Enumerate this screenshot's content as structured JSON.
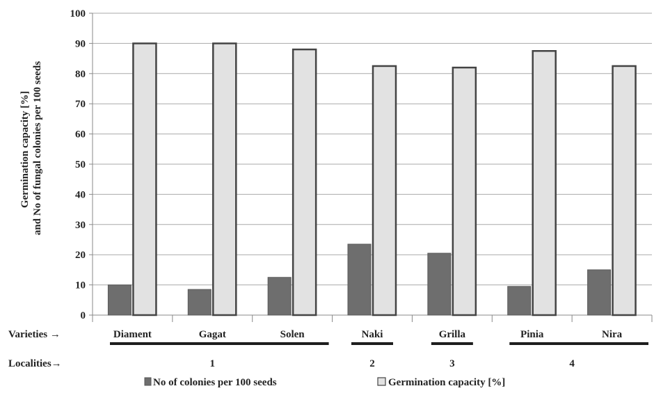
{
  "chart_data": {
    "type": "bar",
    "ylabel_line1": "Germination capacity [%]",
    "ylabel_line2": "and No of fungal colonies per 100 seeds",
    "ylim": [
      0,
      100
    ],
    "yticks": [
      0,
      10,
      20,
      30,
      40,
      50,
      60,
      70,
      80,
      90,
      100
    ],
    "grid": true,
    "categories": [
      "Diament",
      "Gagat",
      "Solen",
      "Naki",
      "Grilla",
      "Pinia",
      "Nira"
    ],
    "series": [
      {
        "name": "No of colonies per 100 seeds",
        "values": [
          10,
          8.5,
          12.5,
          23.5,
          20.5,
          9.5,
          15
        ],
        "color": "#6e6e6e"
      },
      {
        "name": "Germination capacity [%]",
        "values": [
          90,
          90,
          88,
          82.5,
          82,
          87.5,
          82.5
        ],
        "color": "#e2e2e2"
      }
    ],
    "legend_position": "bottom"
  },
  "varieties_label": "Varieties →",
  "localities_label": "Localities→",
  "localities": [
    {
      "label": "1",
      "from": 0,
      "to": 2
    },
    {
      "label": "2",
      "from": 3,
      "to": 3
    },
    {
      "label": "3",
      "from": 4,
      "to": 4
    },
    {
      "label": "4",
      "from": 5,
      "to": 6
    }
  ]
}
